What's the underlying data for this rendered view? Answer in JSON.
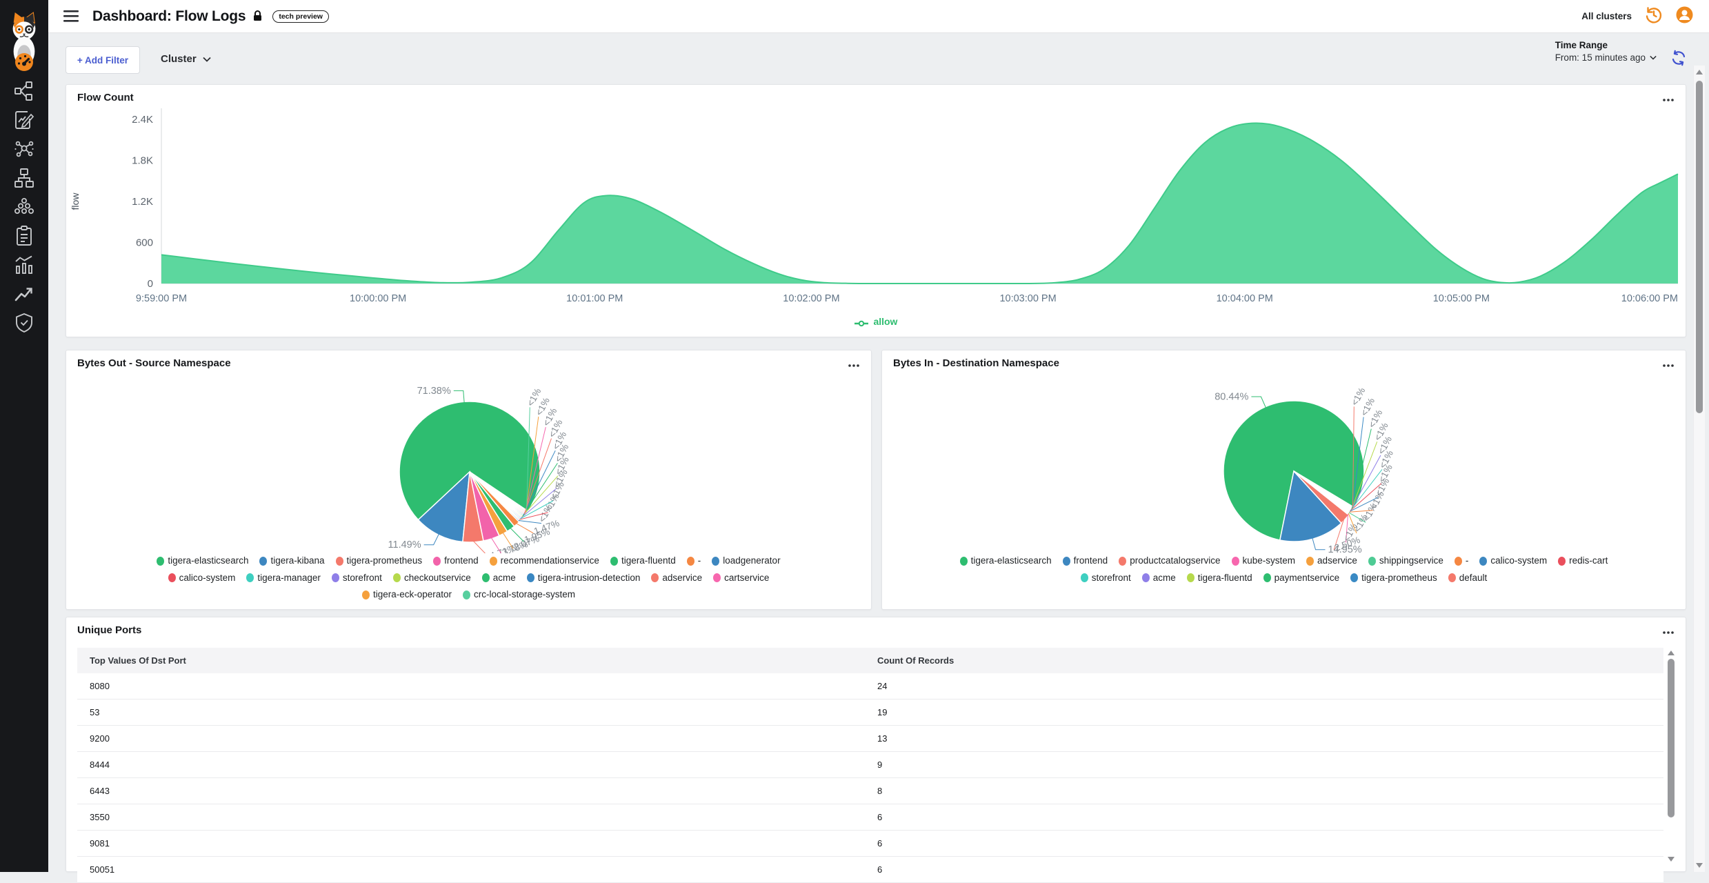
{
  "header": {
    "title": "Dashboard: Flow Logs",
    "badge": "tech preview",
    "clusters_label": "All clusters"
  },
  "filter_bar": {
    "add_filter": "+ Add Filter",
    "cluster_label": "Cluster",
    "time_range_title": "Time Range",
    "time_range_value": "From: 15 minutes ago"
  },
  "sidebar_icons": [
    "dashboard-gauge",
    "network-topology",
    "log-edit",
    "service-graph",
    "network-tree",
    "cluster-nodes",
    "clipboard-report",
    "statistics",
    "trend-up",
    "shield-check"
  ],
  "cards": {
    "flow_count": {
      "title": "Flow Count",
      "menu": "more-options"
    },
    "bytes_out": {
      "title": "Bytes Out - Source Namespace",
      "menu": "more-options"
    },
    "bytes_in": {
      "title": "Bytes In - Destination Namespace",
      "menu": "more-options"
    },
    "unique_ports": {
      "title": "Unique Ports",
      "menu": "more-options"
    }
  },
  "colors": {
    "accent_orange": "#f0861e",
    "brand_green": "#2ebd70",
    "area_fill": "#5cd79e",
    "area_stroke": "#3fcb8a",
    "sidebar_bg": "#17181b",
    "link_blue": "#4a5dd0"
  },
  "chart_data": [
    {
      "type": "area",
      "title": "Flow Count",
      "ylabel": "flow",
      "xlabel": "",
      "ylim": [
        0,
        2400
      ],
      "y_tick_values": [
        0,
        600,
        1200,
        1800,
        2400
      ],
      "y_ticks": [
        "0",
        "600",
        "1.2K",
        "1.8K",
        "2.4K"
      ],
      "x_ticks": [
        "9:59:00 PM",
        "10:00:00 PM",
        "10:01:00 PM",
        "10:02:00 PM",
        "10:03:00 PM",
        "10:04:00 PM",
        "10:05:00 PM",
        "10:06:00 PM"
      ],
      "x_range_seconds": [
        0,
        420
      ],
      "grid": false,
      "legend": [
        "allow"
      ],
      "legend_position": "bottom",
      "series": [
        {
          "name": "allow",
          "color": "#5cd79e",
          "stroke": "#3fcb8a",
          "points": [
            [
              0,
              420
            ],
            [
              14,
              330
            ],
            [
              28,
              245
            ],
            [
              42,
              165
            ],
            [
              56,
              95
            ],
            [
              68,
              40
            ],
            [
              78,
              12
            ],
            [
              86,
              20
            ],
            [
              94,
              80
            ],
            [
              102,
              290
            ],
            [
              110,
              780
            ],
            [
              117,
              1180
            ],
            [
              123,
              1285
            ],
            [
              130,
              1240
            ],
            [
              138,
              1050
            ],
            [
              147,
              780
            ],
            [
              156,
              500
            ],
            [
              164,
              290
            ],
            [
              171,
              140
            ],
            [
              177,
              55
            ],
            [
              183,
              15
            ],
            [
              190,
              3
            ],
            [
              200,
              0
            ],
            [
              215,
              0
            ],
            [
              230,
              0
            ],
            [
              240,
              0
            ],
            [
              247,
              10
            ],
            [
              254,
              60
            ],
            [
              261,
              210
            ],
            [
              268,
              560
            ],
            [
              275,
              1100
            ],
            [
              282,
              1650
            ],
            [
              289,
              2060
            ],
            [
              296,
              2280
            ],
            [
              303,
              2345
            ],
            [
              310,
              2290
            ],
            [
              318,
              2110
            ],
            [
              327,
              1790
            ],
            [
              336,
              1360
            ],
            [
              345,
              900
            ],
            [
              353,
              500
            ],
            [
              360,
              230
            ],
            [
              366,
              70
            ],
            [
              371,
              15
            ],
            [
              376,
              20
            ],
            [
              382,
              110
            ],
            [
              389,
              330
            ],
            [
              396,
              640
            ],
            [
              403,
              1000
            ],
            [
              410,
              1330
            ],
            [
              415,
              1470
            ],
            [
              420,
              1600
            ]
          ]
        }
      ]
    },
    {
      "type": "pie",
      "title": "Bytes Out - Source Namespace",
      "start_angle": -34,
      "direction": "ccw",
      "label_fan": [
        -77,
        47
      ],
      "slices": [
        {
          "name": "tigera-elasticsearch",
          "value": 71.38,
          "label": "71.38%",
          "color": "#2ebd70"
        },
        {
          "name": "tigera-kibana",
          "value": 11.49,
          "label": "11.49%",
          "color": "#3d87c0"
        },
        {
          "name": "tigera-prometheus",
          "value": 4.71,
          "label": "4.71%",
          "color": "#f4796b"
        },
        {
          "name": "frontend",
          "value": 3.78,
          "label": "3.78%",
          "color": "#f263aa"
        },
        {
          "name": "recommendationservice",
          "value": 2.07,
          "label": "2.07%",
          "color": "#f5a03d"
        },
        {
          "name": "tigera-fluentd",
          "value": 1.95,
          "label": "1.95%",
          "color": "#2ebd70"
        },
        {
          "name": "-",
          "value": 1.47,
          "label": "1.47%",
          "color": "#f58742"
        },
        {
          "name": "loadgenerator",
          "value": 0.29,
          "label": "<1%",
          "color": "#3d87c0"
        },
        {
          "name": "calico-system",
          "value": 0.29,
          "label": "<1%",
          "color": "#ea4f5c"
        },
        {
          "name": "tigera-manager",
          "value": 0.29,
          "label": "<1%",
          "color": "#3ecfc0"
        },
        {
          "name": "storefront",
          "value": 0.29,
          "label": "<1%",
          "color": "#8f7fe8"
        },
        {
          "name": "checkoutservice",
          "value": 0.29,
          "label": "<1%",
          "color": "#b6d94c"
        },
        {
          "name": "acme",
          "value": 0.29,
          "label": "<1%",
          "color": "#2ebd70"
        },
        {
          "name": "tigera-intrusion-detection",
          "value": 0.29,
          "label": "<1%",
          "color": "#3a87c2"
        },
        {
          "name": "adservice",
          "value": 0.29,
          "label": "<1%",
          "color": "#f4796b"
        },
        {
          "name": "cartservice",
          "value": 0.29,
          "label": "<1%",
          "color": "#f767ae"
        },
        {
          "name": "tigera-eck-operator",
          "value": 0.29,
          "label": "<1%",
          "color": "#f5a03d"
        },
        {
          "name": "crc-local-storage-system",
          "value": 0.25,
          "label": "<1%",
          "color": "#57cf9e"
        }
      ],
      "legend_rows": [
        [
          0,
          1,
          2,
          3,
          4,
          5,
          6,
          7
        ],
        [
          8,
          9,
          10,
          11,
          12,
          13,
          14,
          15
        ],
        [
          16,
          17
        ]
      ]
    },
    {
      "type": "pie",
      "title": "Bytes In - Destination Namespace",
      "start_angle": -31,
      "direction": "ccw",
      "label_fan": [
        -63,
        47
      ],
      "slices": [
        {
          "name": "tigera-elasticsearch",
          "value": 80.44,
          "label": "80.44%",
          "color": "#2ebd70"
        },
        {
          "name": "frontend",
          "value": 14.95,
          "label": "14.95%",
          "color": "#3d87c0"
        },
        {
          "name": "productcatalogservice",
          "value": 2.5,
          "label": "2.50%",
          "color": "#f4796b"
        },
        {
          "name": "kube-system",
          "value": 0.18,
          "label": "<1%",
          "color": "#f767ae"
        },
        {
          "name": "adservice",
          "value": 0.18,
          "label": "<1%",
          "color": "#f5a03d"
        },
        {
          "name": "shippingservice",
          "value": 0.18,
          "label": "<1%",
          "color": "#4ecb94"
        },
        {
          "name": "-",
          "value": 0.18,
          "label": "<1%",
          "color": "#f58742"
        },
        {
          "name": "calico-system",
          "value": 0.18,
          "label": "<1%",
          "color": "#3d87c0"
        },
        {
          "name": "redis-cart",
          "value": 0.18,
          "label": "<1%",
          "color": "#ea4f5c"
        },
        {
          "name": "storefront",
          "value": 0.18,
          "label": "<1%",
          "color": "#3ecfc0"
        },
        {
          "name": "acme",
          "value": 0.18,
          "label": "<1%",
          "color": "#8f7fe8"
        },
        {
          "name": "tigera-fluentd",
          "value": 0.18,
          "label": "<1%",
          "color": "#b6d94c"
        },
        {
          "name": "paymentservice",
          "value": 0.18,
          "label": "<1%",
          "color": "#2ebd70"
        },
        {
          "name": "tigera-prometheus",
          "value": 0.18,
          "label": "<1%",
          "color": "#3a8ac4"
        },
        {
          "name": "default",
          "value": 0.13,
          "label": "<1%",
          "color": "#f4796b"
        }
      ],
      "legend_rows": [
        [
          0,
          1,
          2,
          3,
          4,
          5,
          6,
          7,
          8
        ],
        [
          9,
          10,
          11,
          12,
          13,
          14
        ]
      ]
    },
    {
      "type": "table",
      "title": "Unique Ports",
      "columns": [
        "Top Values Of Dst Port",
        "Count Of Records"
      ],
      "rows": [
        [
          "8080",
          "24"
        ],
        [
          "53",
          "19"
        ],
        [
          "9200",
          "13"
        ],
        [
          "8444",
          "9"
        ],
        [
          "6443",
          "8"
        ],
        [
          "3550",
          "6"
        ],
        [
          "9081",
          "6"
        ],
        [
          "50051",
          "6"
        ]
      ]
    }
  ]
}
